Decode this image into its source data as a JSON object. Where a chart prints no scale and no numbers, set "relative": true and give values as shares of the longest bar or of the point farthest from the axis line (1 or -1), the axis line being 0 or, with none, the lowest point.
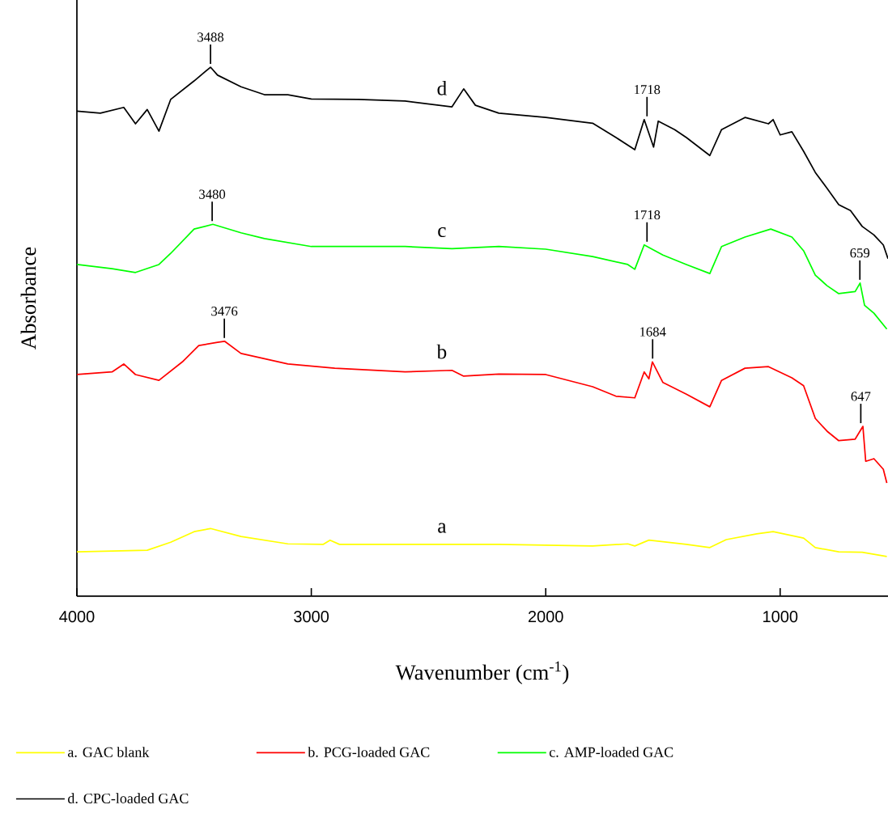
{
  "chart_data": {
    "type": "line",
    "relative": true,
    "xlabel": "Wavenumber (cm$^{-1}$)",
    "ylabel": "Absorbance",
    "xlim": [
      4000,
      540
    ],
    "xticks": [
      4000,
      3000,
      2000,
      1000
    ],
    "legend": "bottom",
    "series": [
      {
        "name": "a. GAC blank",
        "color": "#ffff00",
        "x": [
          4000,
          3700,
          3600,
          3500,
          3430,
          3300,
          3100,
          2950,
          2920,
          2880,
          2600,
          2200,
          1800,
          1650,
          1620,
          1560,
          1400,
          1300,
          1230,
          1100,
          1030,
          900,
          850,
          750,
          650,
          545
        ],
        "values": [
          0.084,
          0.087,
          0.102,
          0.122,
          0.128,
          0.113,
          0.099,
          0.098,
          0.106,
          0.098,
          0.098,
          0.098,
          0.095,
          0.099,
          0.095,
          0.106,
          0.098,
          0.092,
          0.107,
          0.118,
          0.122,
          0.11,
          0.092,
          0.084,
          0.083,
          0.075
        ]
      },
      {
        "name": "b. PCG-loaded GAC",
        "color": "#ff0000",
        "x": [
          4000,
          3850,
          3800,
          3750,
          3650,
          3550,
          3480,
          3400,
          3370,
          3300,
          3100,
          2900,
          2600,
          2400,
          2350,
          2200,
          2000,
          1800,
          1700,
          1620,
          1580,
          1560,
          1545,
          1500,
          1400,
          1300,
          1250,
          1150,
          1050,
          950,
          900,
          850,
          800,
          750,
          680,
          647,
          635,
          600,
          560,
          545
        ],
        "values": [
          0.419,
          0.424,
          0.439,
          0.419,
          0.408,
          0.443,
          0.474,
          0.48,
          0.482,
          0.459,
          0.439,
          0.431,
          0.424,
          0.427,
          0.416,
          0.42,
          0.419,
          0.396,
          0.378,
          0.375,
          0.424,
          0.411,
          0.443,
          0.404,
          0.382,
          0.358,
          0.408,
          0.431,
          0.434,
          0.413,
          0.398,
          0.336,
          0.312,
          0.294,
          0.297,
          0.321,
          0.255,
          0.26,
          0.24,
          0.214
        ]
      },
      {
        "name": "c. AMP-loaded GAC",
        "color": "#00ff00",
        "x": [
          4000,
          3850,
          3750,
          3650,
          3600,
          3500,
          3420,
          3300,
          3200,
          3000,
          2600,
          2400,
          2200,
          2000,
          1800,
          1650,
          1620,
          1580,
          1500,
          1400,
          1300,
          1250,
          1150,
          1040,
          950,
          900,
          850,
          800,
          750,
          680,
          659,
          640,
          600,
          545
        ],
        "values": [
          0.627,
          0.619,
          0.612,
          0.627,
          0.648,
          0.694,
          0.703,
          0.687,
          0.676,
          0.661,
          0.661,
          0.657,
          0.661,
          0.656,
          0.642,
          0.627,
          0.618,
          0.664,
          0.645,
          0.627,
          0.61,
          0.661,
          0.679,
          0.694,
          0.679,
          0.653,
          0.607,
          0.587,
          0.572,
          0.576,
          0.592,
          0.55,
          0.535,
          0.505
        ]
      },
      {
        "name": "d. CPC-loaded GAC",
        "color": "#000000",
        "x": [
          4000,
          3900,
          3800,
          3750,
          3700,
          3650,
          3600,
          3500,
          3430,
          3400,
          3300,
          3200,
          3100,
          3000,
          2800,
          2600,
          2400,
          2350,
          2300,
          2200,
          2000,
          1800,
          1700,
          1620,
          1580,
          1540,
          1520,
          1450,
          1400,
          1300,
          1250,
          1150,
          1050,
          1030,
          1000,
          950,
          900,
          850,
          800,
          750,
          700,
          650,
          600,
          560,
          540
        ],
        "values": [
          0.917,
          0.913,
          0.924,
          0.893,
          0.92,
          0.879,
          0.939,
          0.974,
          1.0,
          0.985,
          0.963,
          0.948,
          0.948,
          0.94,
          0.939,
          0.936,
          0.925,
          0.959,
          0.928,
          0.913,
          0.905,
          0.894,
          0.867,
          0.844,
          0.901,
          0.849,
          0.898,
          0.882,
          0.867,
          0.833,
          0.882,
          0.905,
          0.893,
          0.901,
          0.872,
          0.878,
          0.841,
          0.801,
          0.771,
          0.74,
          0.729,
          0.699,
          0.683,
          0.664,
          0.638
        ]
      }
    ],
    "annotations": [
      "a",
      "b",
      "c",
      "d",
      {
        "text": "3488",
        "x": 3430,
        "y": 1.0
      },
      {
        "text": "1718",
        "x": 1568,
        "y": 0.901
      },
      {
        "text": "3480",
        "x": 3423,
        "y": 0.703
      },
      {
        "text": "1718",
        "x": 1568,
        "y": 0.664
      },
      {
        "text": "659",
        "x": 660,
        "y": 0.592
      },
      {
        "text": "3476",
        "x": 3371,
        "y": 0.482
      },
      {
        "text": "1684",
        "x": 1544,
        "y": 0.443
      },
      {
        "text": "647",
        "x": 656,
        "y": 0.321
      }
    ]
  }
}
